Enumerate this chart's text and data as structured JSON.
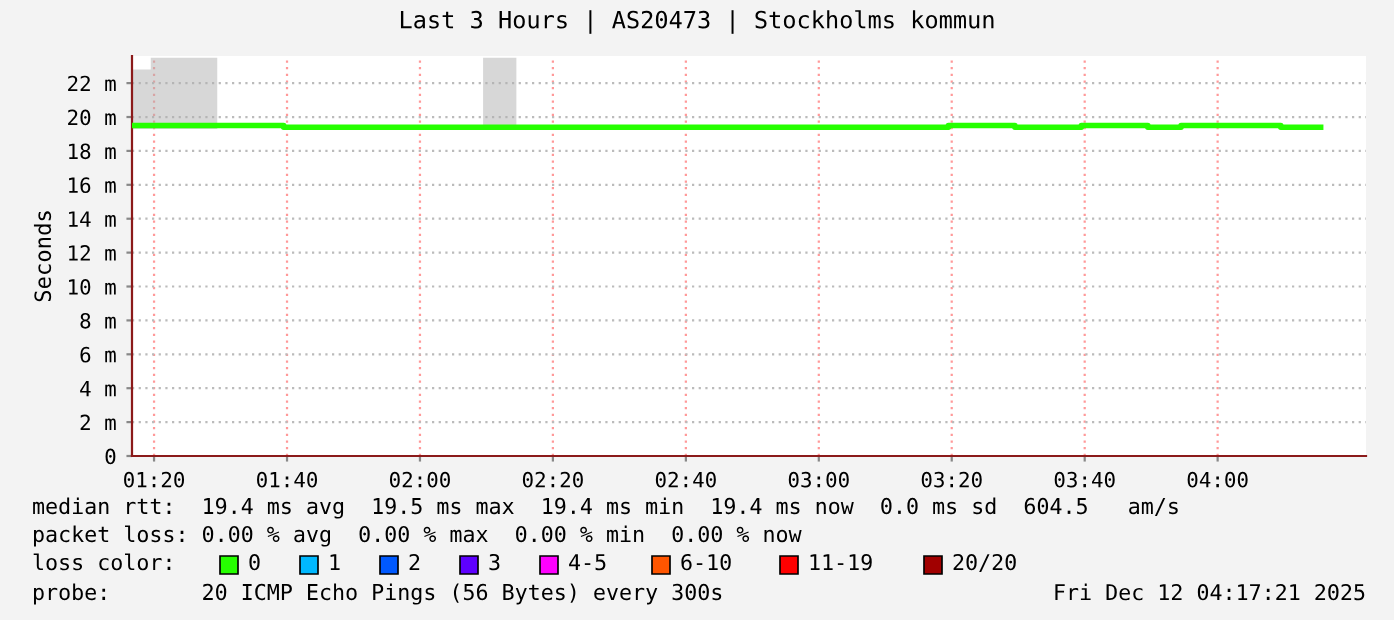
{
  "chart_data": {
    "type": "step",
    "title": "Last 3 Hours | AS20473 | Stockholms kommun",
    "ylabel": "Seconds",
    "legend_title": "loss color:",
    "legend": "bottom",
    "grid": true,
    "x": [
      1.278,
      1.325,
      1.4083,
      1.4917,
      1.575,
      1.6583,
      1.7417,
      2.1583,
      2.2417,
      2.325,
      3.325,
      3.4917,
      3.6583,
      3.825,
      3.9083,
      4.1583,
      4.2583
    ],
    "xlim": [
      1.278,
      4.372
    ],
    "xticks": [
      {
        "value": 1.3333,
        "label": "01:20"
      },
      {
        "value": 1.6667,
        "label": "01:40"
      },
      {
        "value": 2.0,
        "label": "02:00"
      },
      {
        "value": 2.3333,
        "label": "02:20"
      },
      {
        "value": 2.6667,
        "label": "02:40"
      },
      {
        "value": 3.0,
        "label": "03:00"
      },
      {
        "value": 3.3333,
        "label": "03:20"
      },
      {
        "value": 3.6667,
        "label": "03:40"
      },
      {
        "value": 4.0,
        "label": "04:00"
      }
    ],
    "ylim": [
      0,
      23.6
    ],
    "yticks": [
      0,
      {
        "value": 2,
        "label": "2 m"
      },
      {
        "value": 4,
        "label": "4 m"
      },
      {
        "value": 6,
        "label": "6 m"
      },
      {
        "value": 8,
        "label": "8 m"
      },
      {
        "value": 10,
        "label": "10 m"
      },
      {
        "value": 12,
        "label": "12 m"
      },
      {
        "value": 14,
        "label": "14 m"
      },
      {
        "value": 16,
        "label": "16 m"
      },
      {
        "value": 18,
        "label": "18 m"
      },
      {
        "value": 20,
        "label": "20 m"
      },
      {
        "value": 22,
        "label": "22 m"
      }
    ],
    "series": [
      {
        "name": "0",
        "color": "#26ff00",
        "values": [
          19.5,
          19.5,
          19.5,
          19.5,
          19.5,
          19.4,
          19.4,
          19.4,
          19.4,
          19.4,
          19.5,
          19.4,
          19.5,
          19.4,
          19.5,
          19.4,
          19.4
        ],
        "lower": [
          19.3,
          19.3,
          19.3,
          19.3,
          null,
          null,
          null,
          19.3,
          19.3,
          null,
          null,
          null,
          null,
          null,
          null,
          null,
          null
        ],
        "upper": [
          22.8,
          23.5,
          23.5,
          22.3,
          null,
          null,
          null,
          23.5,
          21.2,
          null,
          null,
          null,
          null,
          null,
          null,
          null,
          null
        ]
      },
      {
        "name": "1",
        "color": "#00b8ff",
        "values": [
          null,
          null,
          null,
          null,
          null,
          null,
          null,
          null,
          null,
          null,
          null,
          null,
          null,
          null,
          null,
          null,
          null
        ]
      },
      {
        "name": "2",
        "color": "#0059ff",
        "values": [
          null,
          null,
          null,
          null,
          null,
          null,
          null,
          null,
          null,
          null,
          null,
          null,
          null,
          null,
          null,
          null,
          null
        ]
      },
      {
        "name": "3",
        "color": "#5e00ff",
        "values": [
          null,
          null,
          null,
          null,
          null,
          null,
          null,
          null,
          null,
          null,
          null,
          null,
          null,
          null,
          null,
          null,
          null
        ]
      },
      {
        "name": "4-5",
        "color": "#ff00ff",
        "values": [
          null,
          null,
          null,
          null,
          null,
          null,
          null,
          null,
          null,
          null,
          null,
          null,
          null,
          null,
          null,
          null,
          null
        ]
      },
      {
        "name": "6-10",
        "color": "#ff5500",
        "values": [
          null,
          null,
          null,
          null,
          null,
          null,
          null,
          null,
          null,
          null,
          null,
          null,
          null,
          null,
          null,
          null,
          null
        ]
      },
      {
        "name": "11-19",
        "color": "#ff0000",
        "values": [
          null,
          null,
          null,
          null,
          null,
          null,
          null,
          null,
          null,
          null,
          null,
          null,
          null,
          null,
          null,
          null,
          null
        ]
      },
      {
        "name": "20/20",
        "color": "#a10000",
        "values": [
          null,
          null,
          null,
          null,
          null,
          null,
          null,
          null,
          null,
          null,
          null,
          null,
          null,
          null,
          null,
          null,
          null
        ]
      }
    ],
    "annotations": [
      "median rtt:  19.4 ms avg  19.5 ms max  19.4 ms min  19.4 ms now  0.0 ms sd  604.5   am/s",
      "packet loss: 0.00 % avg  0.00 % max  0.00 % min  0.00 % now",
      "probe:       20 ICMP Echo Pings (56 Bytes) every 300s",
      "Fri Dec 12 04:17:21 2025"
    ]
  }
}
